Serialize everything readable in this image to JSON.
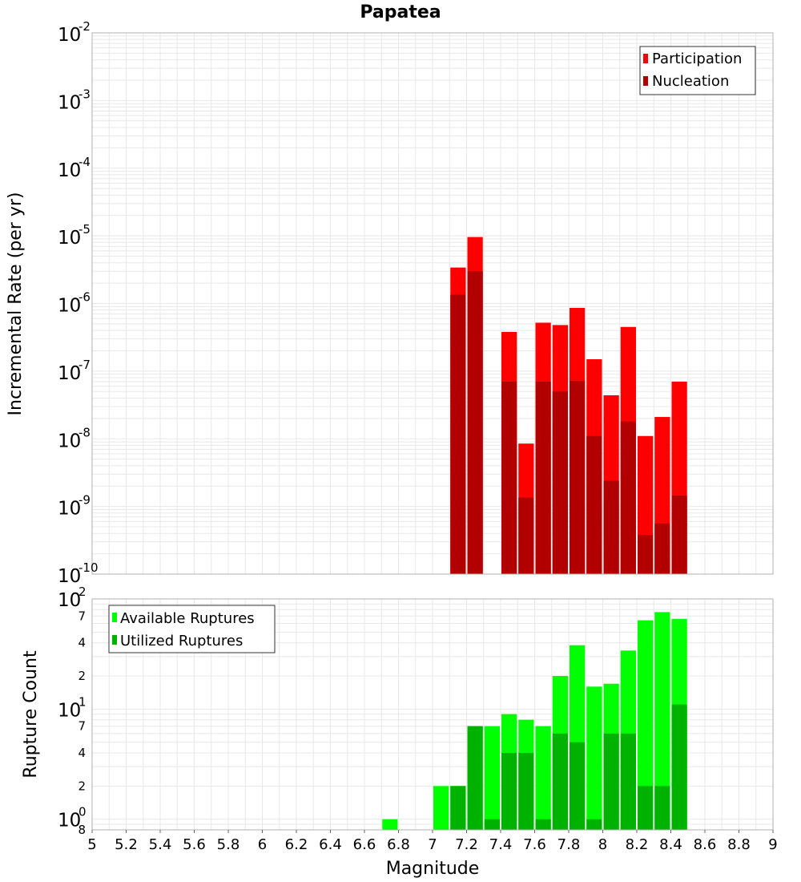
{
  "colors": {
    "participation": "#ff0000",
    "nucleation": "#b20000",
    "available": "#00ff00",
    "utilized": "#00b200",
    "grid": "#e8e8e8",
    "frame": "#b0b0b0"
  },
  "chart_data": [
    {
      "type": "bar",
      "title": "Papatea",
      "ylabel": "Incremental Rate (per yr)",
      "yscale": "log",
      "ylim": [
        1e-10,
        0.01
      ],
      "xlim": [
        5,
        9
      ],
      "bin_width": 0.1,
      "x": [
        7.15,
        7.25,
        7.45,
        7.55,
        7.65,
        7.75,
        7.85,
        7.95,
        8.05,
        8.15,
        8.25,
        8.35,
        8.45
      ],
      "series": [
        {
          "name": "Participation",
          "values": [
            3.4e-06,
            9.6e-06,
            3.8e-07,
            8.5e-09,
            5.2e-07,
            4.8e-07,
            8.6e-07,
            1.5e-07,
            4.4e-08,
            4.5e-07,
            1.1e-08,
            2.1e-08,
            7e-08
          ]
        },
        {
          "name": "Nucleation",
          "values": [
            1.35e-06,
            3e-06,
            7e-08,
            1.35e-09,
            7e-08,
            5e-08,
            7.2e-08,
            1.1e-08,
            2.4e-09,
            1.8e-08,
            3.8e-10,
            5.6e-10,
            1.45e-09
          ]
        }
      ],
      "legend": [
        "Participation",
        "Nucleation"
      ],
      "legend_position": "top-right"
    },
    {
      "type": "bar",
      "xlabel": "Magnitude",
      "ylabel": "Rupture Count",
      "yscale": "log",
      "ylim": [
        0.8,
        100
      ],
      "xlim": [
        5,
        9
      ],
      "bin_width": 0.1,
      "x": [
        6.75,
        7.05,
        7.15,
        7.25,
        7.35,
        7.45,
        7.55,
        7.65,
        7.75,
        7.85,
        7.95,
        8.05,
        8.15,
        8.25,
        8.35,
        8.45
      ],
      "series": [
        {
          "name": "Available Ruptures",
          "values": [
            1,
            2,
            2,
            7,
            7,
            9,
            8,
            7,
            20,
            38,
            16,
            17,
            34,
            64,
            76,
            66
          ]
        },
        {
          "name": "Utilized Ruptures",
          "values": [
            0,
            0,
            2,
            7,
            1,
            4,
            4,
            1,
            6,
            5,
            1,
            6,
            6,
            2,
            2,
            11
          ]
        }
      ],
      "legend": [
        "Available Ruptures",
        "Utilized Ruptures"
      ],
      "legend_position": "top-left",
      "x_ticks": [
        "5",
        "5.2",
        "5.4",
        "5.6",
        "5.8",
        "6",
        "6.2",
        "6.4",
        "6.6",
        "6.8",
        "7",
        "7.2",
        "7.4",
        "7.6",
        "7.8",
        "8",
        "8.2",
        "8.4",
        "8.6",
        "8.8",
        "9"
      ]
    }
  ],
  "top_axis": {
    "decade_base": "10",
    "decade_exponents": [
      "-2",
      "-3",
      "-4",
      "-5",
      "-6",
      "-7",
      "-8",
      "-9",
      "-10"
    ]
  },
  "bottom_axis": {
    "decade_base": "10",
    "decade_exponents": [
      "2",
      "1",
      "0"
    ],
    "minor_labels": [
      "7",
      "4",
      "2",
      "7",
      "4",
      "2",
      "8"
    ]
  }
}
